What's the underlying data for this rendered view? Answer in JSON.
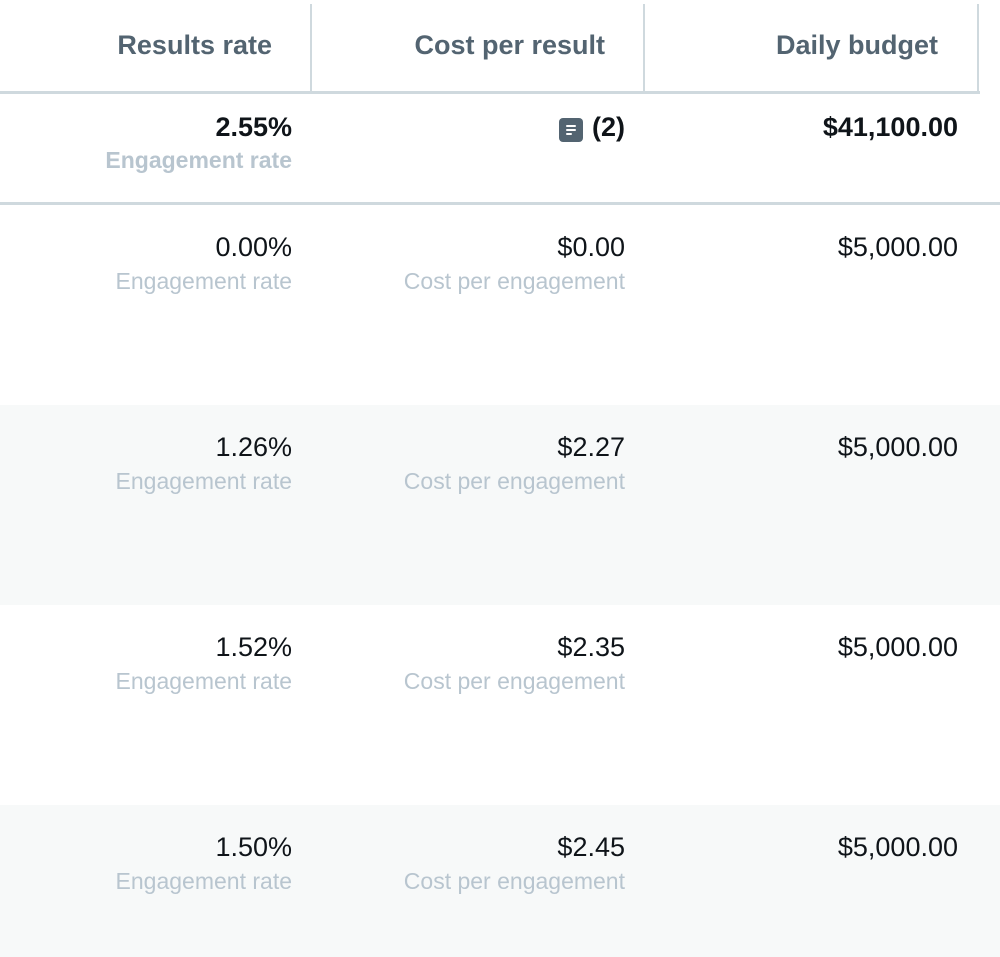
{
  "columns": {
    "results_rate": "Results rate",
    "cost_per_result": "Cost per result",
    "daily_budget": "Daily budget"
  },
  "totals": {
    "results_rate": "2.55%",
    "results_rate_label": "Engagement rate",
    "cost_per_result": "(2)",
    "cost_per_result_icon": "note-icon",
    "daily_budget": "$41,100.00"
  },
  "rows": [
    {
      "results_rate": "0.00%",
      "results_rate_label": "Engagement rate",
      "cost_per_result": "$0.00",
      "cost_per_result_label": "Cost per engagement",
      "daily_budget": "$5,000.00"
    },
    {
      "results_rate": "1.26%",
      "results_rate_label": "Engagement rate",
      "cost_per_result": "$2.27",
      "cost_per_result_label": "Cost per engagement",
      "daily_budget": "$5,000.00"
    },
    {
      "results_rate": "1.52%",
      "results_rate_label": "Engagement rate",
      "cost_per_result": "$2.35",
      "cost_per_result_label": "Cost per engagement",
      "daily_budget": "$5,000.00"
    },
    {
      "results_rate": "1.50%",
      "results_rate_label": "Engagement rate",
      "cost_per_result": "$2.45",
      "cost_per_result_label": "Cost per engagement",
      "daily_budget": "$5,000.00"
    }
  ],
  "colors": {
    "header_text": "#536471",
    "primary_text": "#0f1419",
    "secondary_text": "#b8c5cf",
    "divider": "#cfd9de",
    "alt_row_bg": "#f7f9f9"
  }
}
